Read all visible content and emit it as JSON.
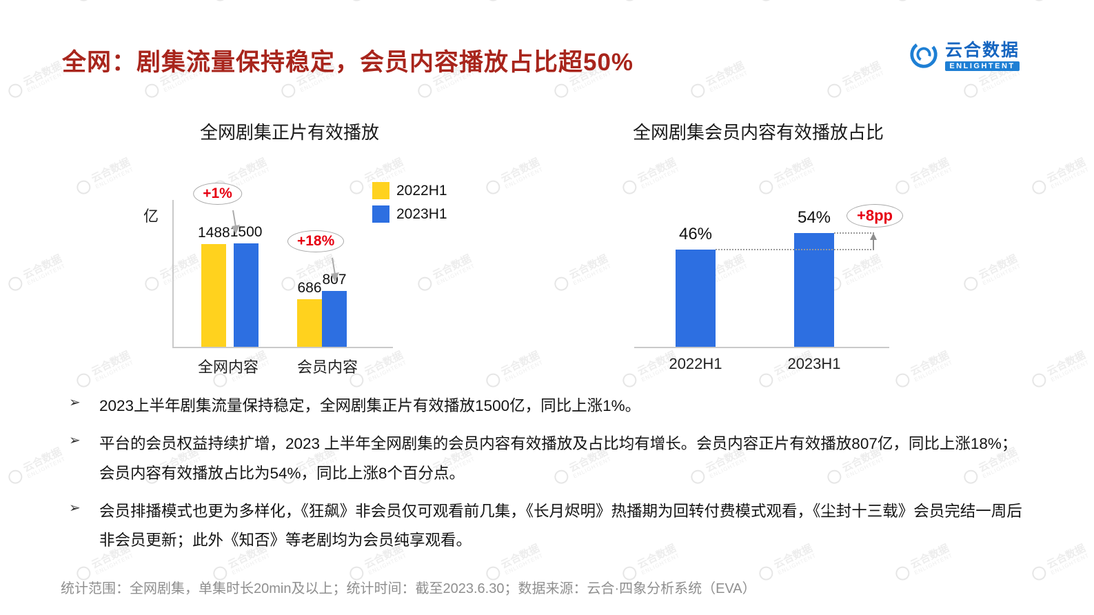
{
  "header": {
    "title": "全网：剧集流量保持稳定，会员内容播放占比超50%",
    "logo": {
      "cn": "云合数据",
      "en": "ENLIGHTENT"
    }
  },
  "colors": {
    "title_red": "#A8251C",
    "bar_yellow": "#FFD21E",
    "bar_blue": "#2D6FE1",
    "annotation_red": "#E60012",
    "axis_gray": "#C9C9C9",
    "footer_gray": "#8F8F8F",
    "logo_blue": "#1E7FD4"
  },
  "chart_data": [
    {
      "type": "bar",
      "title": "全网剧集正片有效播放",
      "ylabel": "亿",
      "categories": [
        "全网内容",
        "会员内容"
      ],
      "series": [
        {
          "name": "2022H1",
          "color": "#FFD21E",
          "values": [
            1488,
            686
          ]
        },
        {
          "name": "2023H1",
          "color": "#2D6FE1",
          "values": [
            1500,
            807
          ]
        }
      ],
      "annotations": [
        "+1%",
        "+18%"
      ],
      "legend_position": "top-right",
      "ylim": [
        0,
        1500
      ]
    },
    {
      "type": "bar",
      "title": "全网剧集会员内容有效播放占比",
      "categories": [
        "2022H1",
        "2023H1"
      ],
      "values": [
        46,
        54
      ],
      "value_labels": [
        "46%",
        "54%"
      ],
      "annotation": "+8pp",
      "ylim": [
        0,
        60
      ]
    }
  ],
  "bullets": {
    "marker": "➢",
    "items": [
      "2023上半年剧集流量保持稳定，全网剧集正片有效播放1500亿，同比上涨1%。",
      "平台的会员权益持续扩增，2023 上半年全网剧集的会员内容有效播放及占比均有增长。会员内容正片有效播放807亿，同比上涨18%；会员内容有效播放占比为54%，同比上涨8个百分点。",
      "会员排播模式也更为多样化，《狂飙》非会员仅可观看前几集，《长月烬明》热播期为回转付费模式观看，《尘封十三载》会员完结一周后非会员更新；此外《知否》等老剧均为会员纯享观看。"
    ]
  },
  "footer": "统计范围：全网剧集，单集时长20min及以上；统计时间：截至2023.6.30；数据来源：云合·四象分析系统（EVA）",
  "watermark": {
    "cn": "云合数据",
    "en": "ENLIGHTENT"
  }
}
